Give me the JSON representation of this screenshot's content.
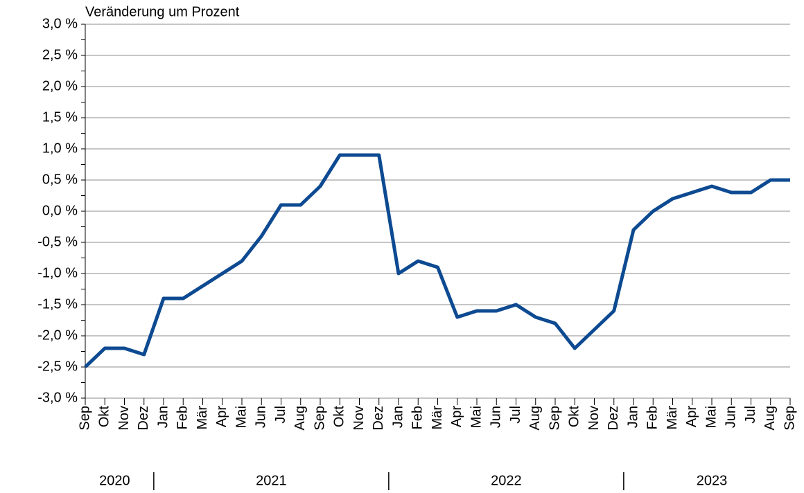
{
  "chart_data": {
    "type": "line",
    "title": "Veränderung um Prozent",
    "categories": [
      "Sep",
      "Okt",
      "Nov",
      "Dez",
      "Jan",
      "Feb",
      "Mär",
      "Apr",
      "Mai",
      "Jun",
      "Jul",
      "Aug",
      "Sep",
      "Okt",
      "Nov",
      "Dez",
      "Jan",
      "Feb",
      "Mär",
      "Apr",
      "Mai",
      "Jun",
      "Jul",
      "Aug",
      "Sep",
      "Okt",
      "Nov",
      "Dez",
      "Jan",
      "Feb",
      "Mär",
      "Apr",
      "Mai",
      "Jun",
      "Jul",
      "Aug",
      "Sep"
    ],
    "year_labels": [
      "2020",
      "2021",
      "2022",
      "2023"
    ],
    "series": [
      {
        "name": "Veränderung",
        "color": "#0d4a91",
        "values": [
          -2.5,
          -2.2,
          -2.2,
          -2.3,
          -1.4,
          -1.4,
          -1.2,
          -1.0,
          -0.8,
          -0.4,
          0.1,
          0.1,
          0.4,
          0.9,
          0.9,
          0.9,
          -1.0,
          -0.8,
          -0.9,
          -1.7,
          -1.6,
          -1.6,
          -1.5,
          -1.7,
          -1.8,
          -2.2,
          -1.9,
          -1.6,
          -0.3,
          0.0,
          0.2,
          0.3,
          0.4,
          0.3,
          0.3,
          0.5,
          0.5
        ]
      }
    ],
    "ylim": [
      -3,
      3
    ],
    "yticks": [
      {
        "value": 3,
        "label": "3,0 %"
      },
      {
        "value": 2.5,
        "label": "2,5 %"
      },
      {
        "value": 2,
        "label": "2,0 %"
      },
      {
        "value": 1.5,
        "label": "1,5 %"
      },
      {
        "value": 1,
        "label": "1,0 %"
      },
      {
        "value": 0.5,
        "label": "0,5 %"
      },
      {
        "value": 0,
        "label": "0,0 %"
      },
      {
        "value": -0.5,
        "label": "-0,5 %"
      },
      {
        "value": -1,
        "label": "-1,0 %"
      },
      {
        "value": -1.5,
        "label": "-1,5 %"
      },
      {
        "value": -2,
        "label": "-2,0 %"
      },
      {
        "value": -2.5,
        "label": "-2,5 %"
      },
      {
        "value": -3,
        "label": "-3,0 %"
      }
    ],
    "grid": true
  }
}
